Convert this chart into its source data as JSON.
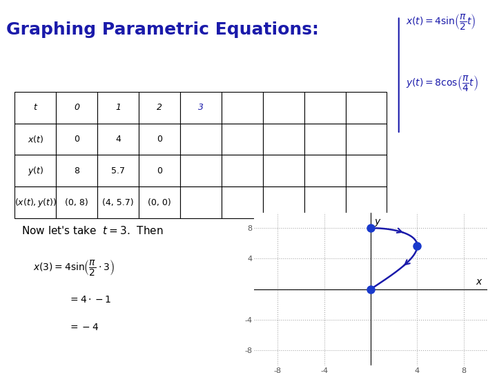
{
  "title": "Graphing Parametric Equations:",
  "title_color": "#1a1aaa",
  "title_fontsize": 18,
  "background_color": "#ffffff",
  "table": {
    "rows": [
      "$t$",
      "$x(t)$",
      "$y(t)$",
      "$(x(t),\\, y(t))$"
    ],
    "cols": [
      "",
      "0",
      "1",
      "2",
      "3",
      "",
      "",
      "",
      ""
    ],
    "data": [
      [
        "$t$",
        "0",
        "1",
        "2",
        "3",
        "",
        "",
        "",
        ""
      ],
      [
        "$x(t)$",
        "0",
        "4",
        "0",
        "",
        "",
        "",
        "",
        ""
      ],
      [
        "$y(t)$",
        "8",
        "5.7",
        "0",
        "",
        "",
        "",
        "",
        ""
      ],
      [
        "$(x(t), y(t))$",
        "(0, 8)",
        "(4, 5.7)",
        "(0, 0)",
        "",
        "",
        "",
        "",
        ""
      ]
    ],
    "num_cols": 9,
    "num_rows": 4
  },
  "now_text": "Now let's take  $t = 3$.  Then",
  "eq_lines": [
    "$x(3) = 4\\sin\\!\\left(\\dfrac{\\pi}{2}\\cdot 3\\right)$",
    "$= 4\\cdot -1$",
    "$= -4$"
  ],
  "formula_text_color": "#000000",
  "plot": {
    "xlim": [
      -10,
      10
    ],
    "ylim": [
      -10,
      10
    ],
    "xticks": [
      -8,
      -4,
      4,
      8
    ],
    "yticks": [
      -8,
      -4,
      4,
      8
    ],
    "xlabel": "x",
    "ylabel": "y",
    "curve_color": "#1a1aaa",
    "dot_color": "#1a3acc",
    "dot_size": 8,
    "points": [
      [
        0,
        8
      ],
      [
        4,
        5.7
      ],
      [
        0,
        0
      ]
    ],
    "t_vals": [
      0,
      1,
      2
    ],
    "grid_color": "#aaaaaa",
    "grid_style": "dotted"
  }
}
